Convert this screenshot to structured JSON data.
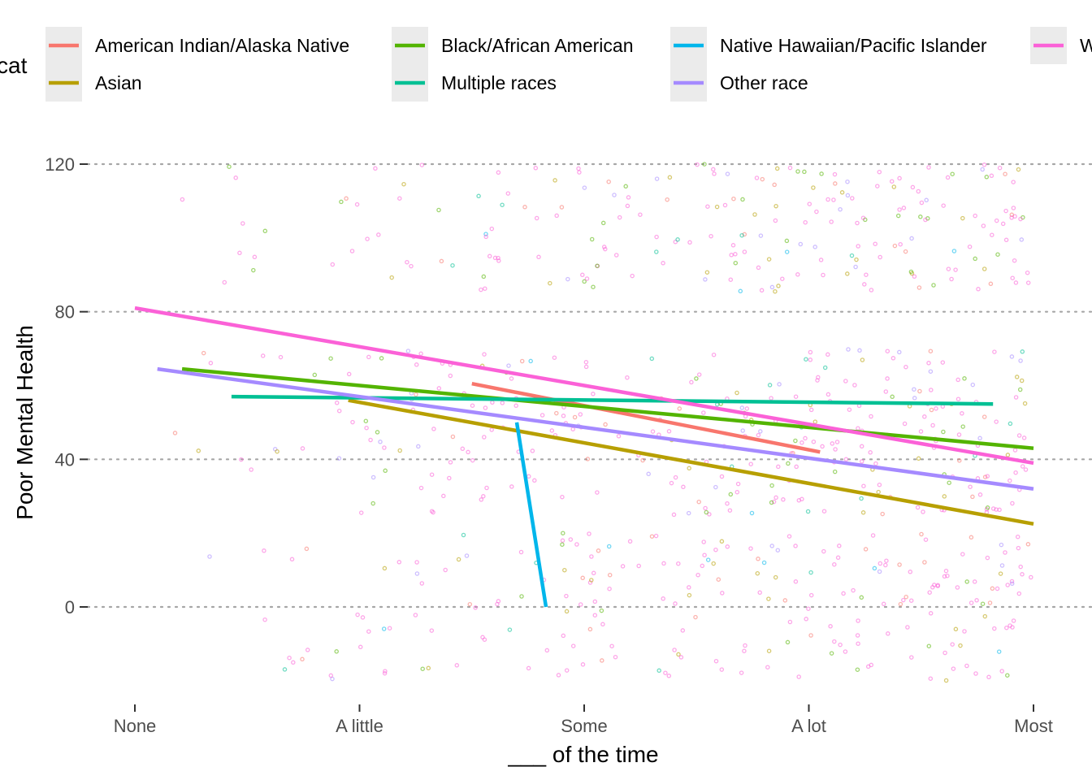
{
  "chart_data": {
    "type": "scatter",
    "xlabel": "___ of the time",
    "ylabel": "Poor Mental Health",
    "x_categories": [
      "None",
      "A little",
      "Some",
      "A lot",
      "Most"
    ],
    "x_range": [
      0,
      4
    ],
    "y_ticks": [
      0,
      40,
      80,
      120
    ],
    "ylim": [
      -27,
      132
    ],
    "grid": "horizontal dotted major lines",
    "legend": {
      "title": "cat",
      "title_visible_text": "cat",
      "placement": "top",
      "entries": [
        {
          "label": "American Indian/Alaska Native",
          "color": "#F8766D"
        },
        {
          "label": "Asian",
          "color": "#B79F00"
        },
        {
          "label": "Black/African American",
          "color": "#53B400"
        },
        {
          "label": "Multiple races",
          "color": "#00C094"
        },
        {
          "label": "Native Hawaiian/Pacific Islander",
          "color": "#00B6EB"
        },
        {
          "label": "Other race",
          "color": "#A58AFF"
        },
        {
          "label": "W",
          "color": "#FB61D7"
        }
      ]
    },
    "series": [
      {
        "name": "American Indian/Alaska Native",
        "color": "#F8766D",
        "x": [
          1.5,
          3.05
        ],
        "y": [
          60.5,
          42
        ]
      },
      {
        "name": "Asian",
        "color": "#B79F00",
        "x": [
          0.95,
          4.0
        ],
        "y": [
          56,
          22.5
        ]
      },
      {
        "name": "Black/African American",
        "color": "#53B400",
        "x": [
          0.21,
          4.0
        ],
        "y": [
          64.5,
          43
        ]
      },
      {
        "name": "Multiple races",
        "color": "#00C094",
        "x": [
          0.43,
          3.82
        ],
        "y": [
          57,
          55
        ]
      },
      {
        "name": "Native Hawaiian/Pacific Islander",
        "color": "#00B6EB",
        "x": [
          1.7,
          1.83
        ],
        "y": [
          50,
          0
        ]
      },
      {
        "name": "Other race",
        "color": "#A58AFF",
        "x": [
          0.1,
          4.0
        ],
        "y": [
          64.5,
          32
        ]
      },
      {
        "name": "W",
        "color": "#FB61D7",
        "x": [
          0.0,
          4.0
        ],
        "y": [
          81,
          39
        ]
      }
    ],
    "jittered_points": "Semi-transparent jittered raw responses for every category (y roughly -20 to 120), colored by group"
  }
}
